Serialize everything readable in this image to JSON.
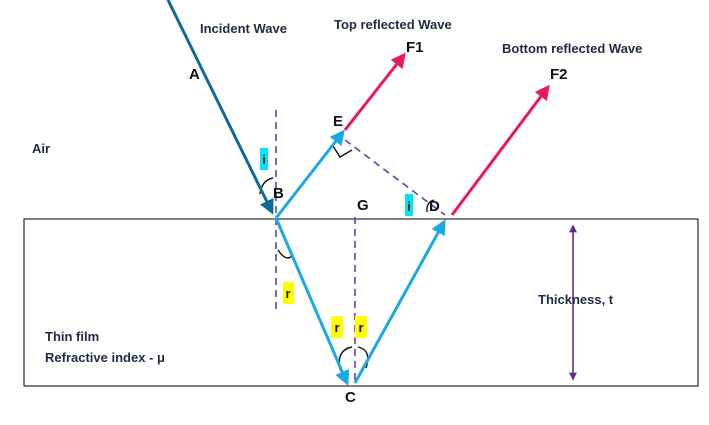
{
  "labels": {
    "incident_wave": "Incident Wave",
    "top_reflected_wave": "Top reflected Wave",
    "bottom_reflected_wave": "Bottom reflected Wave",
    "air": "Air",
    "thin_film": "Thin film",
    "refractive_index": "Refractive index - μ",
    "thickness": "Thickness, t"
  },
  "points": {
    "A": "A",
    "B": "B",
    "C": "C",
    "D": "D",
    "E": "E",
    "F1": "F1",
    "F2": "F2",
    "G": "G"
  },
  "angles": {
    "incidence": "i",
    "refraction": "r"
  },
  "colors": {
    "incident_ray": "#0f6a9a",
    "film_rays": "#1aa8e6",
    "reflected_rays": "#ec1763",
    "dashed_lines": "#6a3fa0",
    "thickness_arrow": "#6a2b8e",
    "highlight_cyan": "#00e5f5",
    "highlight_yellow": "#ffff00",
    "film_border": "#000000"
  }
}
